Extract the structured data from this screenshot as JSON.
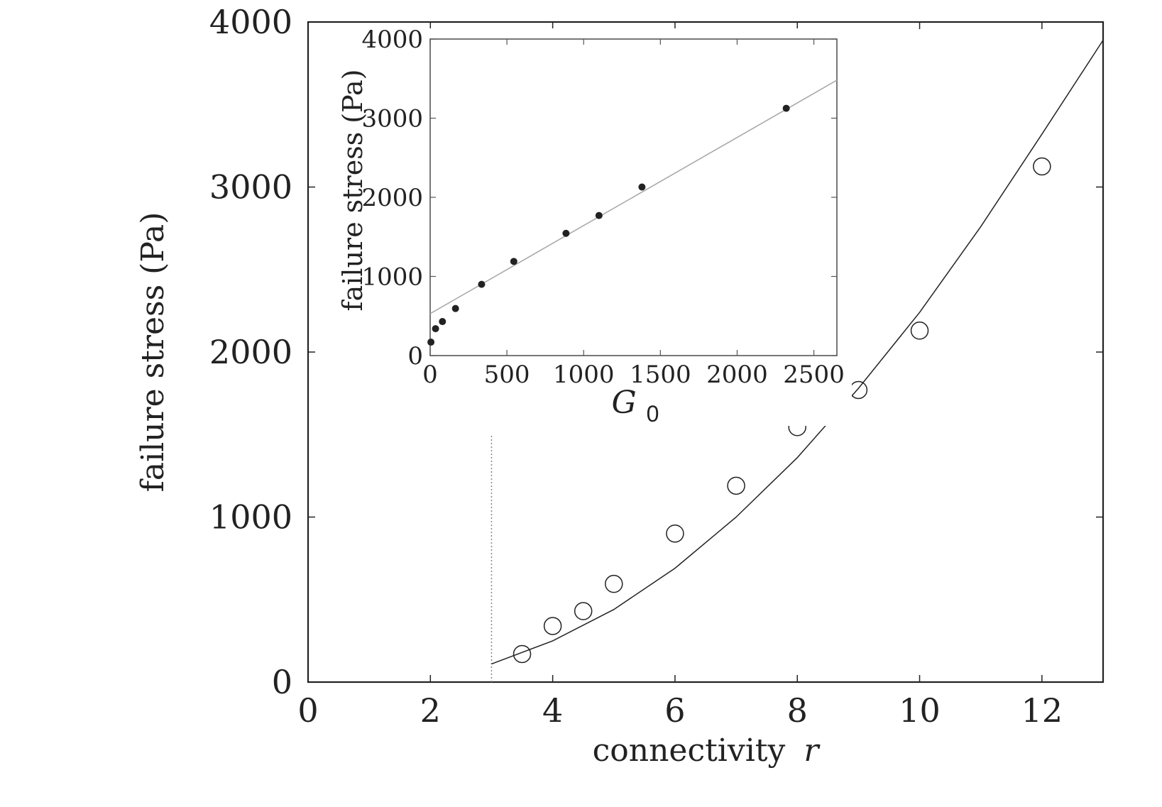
{
  "chart_data": [
    {
      "type": "scatter",
      "role": "main",
      "xlabel": "connectivity",
      "xlabel_var": "r",
      "ylabel": "failure stress (Pa)",
      "xlim": [
        0,
        13
      ],
      "ylim": [
        0,
        4000
      ],
      "x_ticks": [
        0,
        2,
        4,
        6,
        8,
        10,
        12
      ],
      "y_ticks": [
        0,
        1000,
        2000,
        3000,
        4000
      ],
      "x_tick_labels": [
        "0",
        "2",
        "4",
        "6",
        "8",
        "10",
        "12"
      ],
      "y_tick_labels": [
        "0",
        "1000",
        "2000",
        "3000",
        "4000"
      ],
      "marker": "open-circle",
      "points": [
        {
          "x": 3.5,
          "y": 170
        },
        {
          "x": 4,
          "y": 340
        },
        {
          "x": 4.5,
          "y": 430
        },
        {
          "x": 5,
          "y": 595
        },
        {
          "x": 6,
          "y": 900
        },
        {
          "x": 7,
          "y": 1190
        },
        {
          "x": 8,
          "y": 1545
        },
        {
          "x": 9,
          "y": 1770
        },
        {
          "x": 10,
          "y": 2130
        },
        {
          "x": 12,
          "y": 3125
        }
      ],
      "fit_curve": {
        "points": [
          {
            "x": 3,
            "y": 110
          },
          {
            "x": 4,
            "y": 250
          },
          {
            "x": 5,
            "y": 440
          },
          {
            "x": 6,
            "y": 690
          },
          {
            "x": 7,
            "y": 1000
          },
          {
            "x": 8,
            "y": 1360
          },
          {
            "x": 9,
            "y": 1780
          },
          {
            "x": 10,
            "y": 2240
          },
          {
            "x": 11,
            "y": 2760
          },
          {
            "x": 12,
            "y": 3320
          },
          {
            "x": 13,
            "y": 3890
          }
        ]
      },
      "threshold_line": {
        "x": 3,
        "y_top": 1500,
        "style": "dotted"
      },
      "grid": false
    },
    {
      "type": "scatter",
      "role": "inset",
      "xlabel": "G",
      "xlabel_sub": "0",
      "ylabel": "failure stress (Pa)",
      "xlim": [
        0,
        2650
      ],
      "ylim": [
        0,
        4000
      ],
      "x_ticks": [
        0,
        500,
        1000,
        1500,
        2000,
        2500
      ],
      "y_ticks": [
        0,
        1000,
        2000,
        3000,
        4000
      ],
      "x_tick_labels": [
        "0",
        "500",
        "1000",
        "1500",
        "2000",
        "2500"
      ],
      "y_tick_labels": [
        "0",
        "1000",
        "2000",
        "3000",
        "4000"
      ],
      "marker": "filled-circle",
      "points": [
        {
          "x": 5,
          "y": 170
        },
        {
          "x": 35,
          "y": 340
        },
        {
          "x": 80,
          "y": 430
        },
        {
          "x": 165,
          "y": 595
        },
        {
          "x": 335,
          "y": 900
        },
        {
          "x": 545,
          "y": 1190
        },
        {
          "x": 885,
          "y": 1545
        },
        {
          "x": 1100,
          "y": 1770
        },
        {
          "x": 1380,
          "y": 2130
        },
        {
          "x": 2320,
          "y": 3125
        }
      ],
      "fit_line": {
        "x0": 0,
        "y0": 530,
        "x1": 2650,
        "y1": 3480
      },
      "grid": false
    }
  ],
  "colors": {
    "axis": "#222222",
    "marker": "#222222",
    "fit_main": "#222222",
    "fit_inset": "#aaaaaa",
    "threshold": "#888888"
  }
}
